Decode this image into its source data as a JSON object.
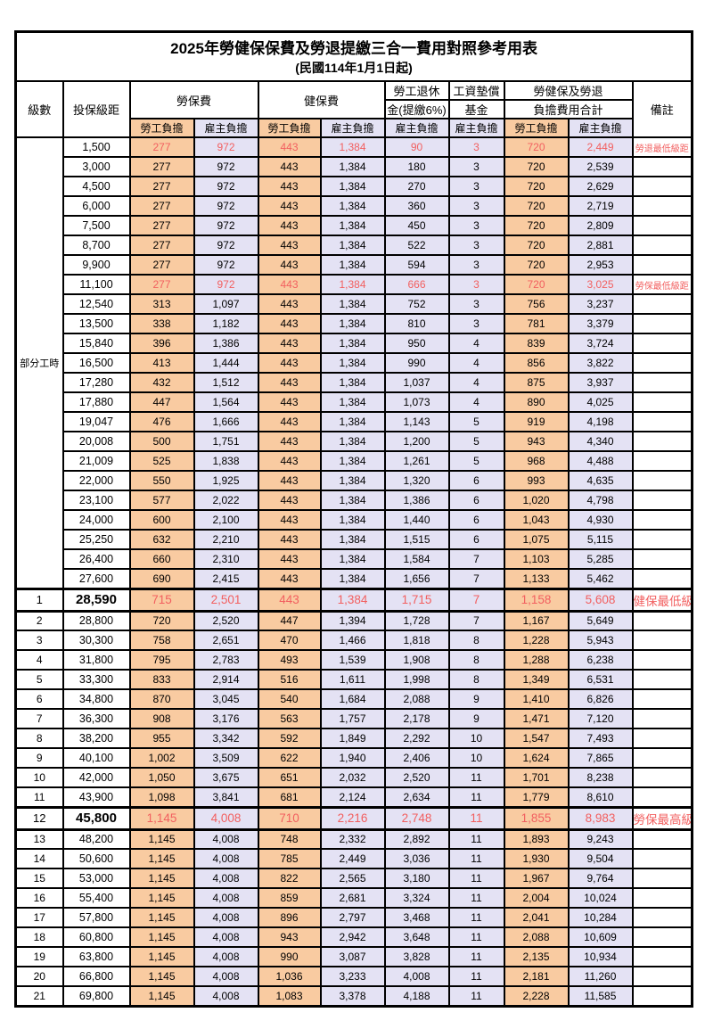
{
  "title": "2025年勞健保保費及勞退提繳三合一費用對照參考用表",
  "subtitle": "(民國114年1月1日起)",
  "colors": {
    "employee_share_bg": "#F9CBA1",
    "employer_share_bg": "#E4E2F4",
    "highlight_text": "#F25F5F",
    "border": "#000000"
  },
  "header": {
    "level": "級數",
    "bracket": "投保級距",
    "labor_group": "勞保費",
    "health_group": "健保費",
    "pension_line1": "勞工退休",
    "pension_line2": "金(提繳6%)",
    "wage_line1": "工資墊償",
    "wage_line2": "基金",
    "total_line1": "勞健保及勞退",
    "total_line2": "負擔費用合計",
    "remark": "備註",
    "sub_employee": "勞工負擔",
    "sub_employer": "雇主負擔"
  },
  "part_time_label": "部分工時",
  "rows": [
    {
      "level": "",
      "bracket": "1,500",
      "v": [
        "277",
        "972",
        "443",
        "1,384",
        "90",
        "3",
        "720",
        "2,449"
      ],
      "remark": "勞退最低級距",
      "red": true,
      "big": false
    },
    {
      "level": "",
      "bracket": "3,000",
      "v": [
        "277",
        "972",
        "443",
        "1,384",
        "180",
        "3",
        "720",
        "2,539"
      ],
      "remark": "",
      "red": false,
      "big": false
    },
    {
      "level": "",
      "bracket": "4,500",
      "v": [
        "277",
        "972",
        "443",
        "1,384",
        "270",
        "3",
        "720",
        "2,629"
      ],
      "remark": "",
      "red": false,
      "big": false
    },
    {
      "level": "",
      "bracket": "6,000",
      "v": [
        "277",
        "972",
        "443",
        "1,384",
        "360",
        "3",
        "720",
        "2,719"
      ],
      "remark": "",
      "red": false,
      "big": false
    },
    {
      "level": "",
      "bracket": "7,500",
      "v": [
        "277",
        "972",
        "443",
        "1,384",
        "450",
        "3",
        "720",
        "2,809"
      ],
      "remark": "",
      "red": false,
      "big": false
    },
    {
      "level": "",
      "bracket": "8,700",
      "v": [
        "277",
        "972",
        "443",
        "1,384",
        "522",
        "3",
        "720",
        "2,881"
      ],
      "remark": "",
      "red": false,
      "big": false
    },
    {
      "level": "",
      "bracket": "9,900",
      "v": [
        "277",
        "972",
        "443",
        "1,384",
        "594",
        "3",
        "720",
        "2,953"
      ],
      "remark": "",
      "red": false,
      "big": false
    },
    {
      "level": "",
      "bracket": "11,100",
      "v": [
        "277",
        "972",
        "443",
        "1,384",
        "666",
        "3",
        "720",
        "3,025"
      ],
      "remark": "勞保最低級距",
      "red": true,
      "big": false
    },
    {
      "level": "",
      "bracket": "12,540",
      "v": [
        "313",
        "1,097",
        "443",
        "1,384",
        "752",
        "3",
        "756",
        "3,237"
      ],
      "remark": "",
      "red": false,
      "big": false
    },
    {
      "level": "",
      "bracket": "13,500",
      "v": [
        "338",
        "1,182",
        "443",
        "1,384",
        "810",
        "3",
        "781",
        "3,379"
      ],
      "remark": "",
      "red": false,
      "big": false
    },
    {
      "level": "",
      "bracket": "15,840",
      "v": [
        "396",
        "1,386",
        "443",
        "1,384",
        "950",
        "4",
        "839",
        "3,724"
      ],
      "remark": "",
      "red": false,
      "big": false
    },
    {
      "level": "",
      "bracket": "16,500",
      "v": [
        "413",
        "1,444",
        "443",
        "1,384",
        "990",
        "4",
        "856",
        "3,822"
      ],
      "remark": "",
      "red": false,
      "big": false
    },
    {
      "level": "",
      "bracket": "17,280",
      "v": [
        "432",
        "1,512",
        "443",
        "1,384",
        "1,037",
        "4",
        "875",
        "3,937"
      ],
      "remark": "",
      "red": false,
      "big": false
    },
    {
      "level": "",
      "bracket": "17,880",
      "v": [
        "447",
        "1,564",
        "443",
        "1,384",
        "1,073",
        "4",
        "890",
        "4,025"
      ],
      "remark": "",
      "red": false,
      "big": false
    },
    {
      "level": "",
      "bracket": "19,047",
      "v": [
        "476",
        "1,666",
        "443",
        "1,384",
        "1,143",
        "5",
        "919",
        "4,198"
      ],
      "remark": "",
      "red": false,
      "big": false
    },
    {
      "level": "",
      "bracket": "20,008",
      "v": [
        "500",
        "1,751",
        "443",
        "1,384",
        "1,200",
        "5",
        "943",
        "4,340"
      ],
      "remark": "",
      "red": false,
      "big": false
    },
    {
      "level": "",
      "bracket": "21,009",
      "v": [
        "525",
        "1,838",
        "443",
        "1,384",
        "1,261",
        "5",
        "968",
        "4,488"
      ],
      "remark": "",
      "red": false,
      "big": false
    },
    {
      "level": "",
      "bracket": "22,000",
      "v": [
        "550",
        "1,925",
        "443",
        "1,384",
        "1,320",
        "6",
        "993",
        "4,635"
      ],
      "remark": "",
      "red": false,
      "big": false
    },
    {
      "level": "",
      "bracket": "23,100",
      "v": [
        "577",
        "2,022",
        "443",
        "1,384",
        "1,386",
        "6",
        "1,020",
        "4,798"
      ],
      "remark": "",
      "red": false,
      "big": false
    },
    {
      "level": "",
      "bracket": "24,000",
      "v": [
        "600",
        "2,100",
        "443",
        "1,384",
        "1,440",
        "6",
        "1,043",
        "4,930"
      ],
      "remark": "",
      "red": false,
      "big": false
    },
    {
      "level": "",
      "bracket": "25,250",
      "v": [
        "632",
        "2,210",
        "443",
        "1,384",
        "1,515",
        "6",
        "1,075",
        "5,115"
      ],
      "remark": "",
      "red": false,
      "big": false
    },
    {
      "level": "",
      "bracket": "26,400",
      "v": [
        "660",
        "2,310",
        "443",
        "1,384",
        "1,584",
        "7",
        "1,103",
        "5,285"
      ],
      "remark": "",
      "red": false,
      "big": false
    },
    {
      "level": "",
      "bracket": "27,600",
      "v": [
        "690",
        "2,415",
        "443",
        "1,384",
        "1,656",
        "7",
        "1,133",
        "5,462"
      ],
      "remark": "",
      "red": false,
      "big": false
    },
    {
      "level": "1",
      "bracket": "28,590",
      "v": [
        "715",
        "2,501",
        "443",
        "1,384",
        "1,715",
        "7",
        "1,158",
        "5,608"
      ],
      "remark": "健保最低級距",
      "red": true,
      "big": true
    },
    {
      "level": "2",
      "bracket": "28,800",
      "v": [
        "720",
        "2,520",
        "447",
        "1,394",
        "1,728",
        "7",
        "1,167",
        "5,649"
      ],
      "remark": "",
      "red": false,
      "big": false
    },
    {
      "level": "3",
      "bracket": "30,300",
      "v": [
        "758",
        "2,651",
        "470",
        "1,466",
        "1,818",
        "8",
        "1,228",
        "5,943"
      ],
      "remark": "",
      "red": false,
      "big": false
    },
    {
      "level": "4",
      "bracket": "31,800",
      "v": [
        "795",
        "2,783",
        "493",
        "1,539",
        "1,908",
        "8",
        "1,288",
        "6,238"
      ],
      "remark": "",
      "red": false,
      "big": false
    },
    {
      "level": "5",
      "bracket": "33,300",
      "v": [
        "833",
        "2,914",
        "516",
        "1,611",
        "1,998",
        "8",
        "1,349",
        "6,531"
      ],
      "remark": "",
      "red": false,
      "big": false
    },
    {
      "level": "6",
      "bracket": "34,800",
      "v": [
        "870",
        "3,045",
        "540",
        "1,684",
        "2,088",
        "9",
        "1,410",
        "6,826"
      ],
      "remark": "",
      "red": false,
      "big": false
    },
    {
      "level": "7",
      "bracket": "36,300",
      "v": [
        "908",
        "3,176",
        "563",
        "1,757",
        "2,178",
        "9",
        "1,471",
        "7,120"
      ],
      "remark": "",
      "red": false,
      "big": false
    },
    {
      "level": "8",
      "bracket": "38,200",
      "v": [
        "955",
        "3,342",
        "592",
        "1,849",
        "2,292",
        "10",
        "1,547",
        "7,493"
      ],
      "remark": "",
      "red": false,
      "big": false
    },
    {
      "level": "9",
      "bracket": "40,100",
      "v": [
        "1,002",
        "3,509",
        "622",
        "1,940",
        "2,406",
        "10",
        "1,624",
        "7,865"
      ],
      "remark": "",
      "red": false,
      "big": false
    },
    {
      "level": "10",
      "bracket": "42,000",
      "v": [
        "1,050",
        "3,675",
        "651",
        "2,032",
        "2,520",
        "11",
        "1,701",
        "8,238"
      ],
      "remark": "",
      "red": false,
      "big": false
    },
    {
      "level": "11",
      "bracket": "43,900",
      "v": [
        "1,098",
        "3,841",
        "681",
        "2,124",
        "2,634",
        "11",
        "1,779",
        "8,610"
      ],
      "remark": "",
      "red": false,
      "big": false
    },
    {
      "level": "12",
      "bracket": "45,800",
      "v": [
        "1,145",
        "4,008",
        "710",
        "2,216",
        "2,748",
        "11",
        "1,855",
        "8,983"
      ],
      "remark": "勞保最高級距",
      "red": true,
      "big": true
    },
    {
      "level": "13",
      "bracket": "48,200",
      "v": [
        "1,145",
        "4,008",
        "748",
        "2,332",
        "2,892",
        "11",
        "1,893",
        "9,243"
      ],
      "remark": "",
      "red": false,
      "big": false
    },
    {
      "level": "14",
      "bracket": "50,600",
      "v": [
        "1,145",
        "4,008",
        "785",
        "2,449",
        "3,036",
        "11",
        "1,930",
        "9,504"
      ],
      "remark": "",
      "red": false,
      "big": false
    },
    {
      "level": "15",
      "bracket": "53,000",
      "v": [
        "1,145",
        "4,008",
        "822",
        "2,565",
        "3,180",
        "11",
        "1,967",
        "9,764"
      ],
      "remark": "",
      "red": false,
      "big": false
    },
    {
      "level": "16",
      "bracket": "55,400",
      "v": [
        "1,145",
        "4,008",
        "859",
        "2,681",
        "3,324",
        "11",
        "2,004",
        "10,024"
      ],
      "remark": "",
      "red": false,
      "big": false
    },
    {
      "level": "17",
      "bracket": "57,800",
      "v": [
        "1,145",
        "4,008",
        "896",
        "2,797",
        "3,468",
        "11",
        "2,041",
        "10,284"
      ],
      "remark": "",
      "red": false,
      "big": false
    },
    {
      "level": "18",
      "bracket": "60,800",
      "v": [
        "1,145",
        "4,008",
        "943",
        "2,942",
        "3,648",
        "11",
        "2,088",
        "10,609"
      ],
      "remark": "",
      "red": false,
      "big": false
    },
    {
      "level": "19",
      "bracket": "63,800",
      "v": [
        "1,145",
        "4,008",
        "990",
        "3,087",
        "3,828",
        "11",
        "2,135",
        "10,934"
      ],
      "remark": "",
      "red": false,
      "big": false
    },
    {
      "level": "20",
      "bracket": "66,800",
      "v": [
        "1,145",
        "4,008",
        "1,036",
        "3,233",
        "4,008",
        "11",
        "2,181",
        "11,260"
      ],
      "remark": "",
      "red": false,
      "big": false
    },
    {
      "level": "21",
      "bracket": "69,800",
      "v": [
        "1,145",
        "4,008",
        "1,083",
        "3,378",
        "4,188",
        "11",
        "2,228",
        "11,585"
      ],
      "remark": "",
      "red": false,
      "big": false
    }
  ]
}
